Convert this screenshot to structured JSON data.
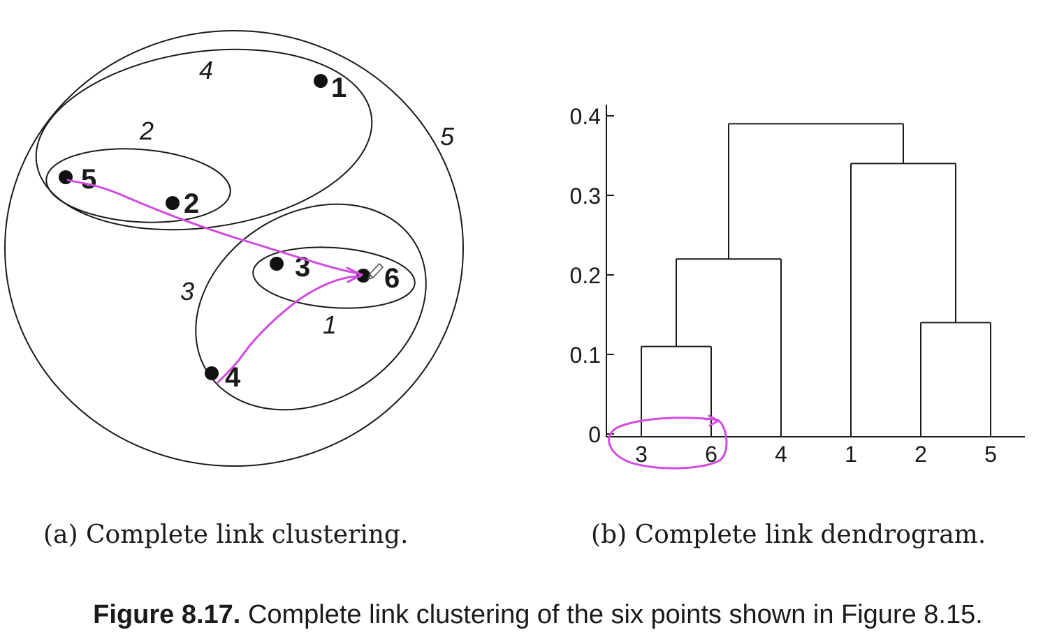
{
  "panel_a": {
    "points": [
      {
        "id": "1",
        "label": "1"
      },
      {
        "id": "2",
        "label": "2"
      },
      {
        "id": "3",
        "label": "3"
      },
      {
        "id": "4",
        "label": "4"
      },
      {
        "id": "5",
        "label": "5"
      },
      {
        "id": "6",
        "label": "6"
      }
    ],
    "cluster_labels": [
      "1",
      "2",
      "3",
      "4",
      "5"
    ],
    "caption": "(a) Complete link clustering."
  },
  "panel_b": {
    "caption": "(b) Complete link dendrogram.",
    "leaves": [
      "3",
      "6",
      "4",
      "1",
      "2",
      "5"
    ],
    "yticks": [
      "0",
      "0.1",
      "0.2",
      "0.3",
      "0.4"
    ]
  },
  "figure_caption": {
    "number": "Figure 8.17.",
    "text": "Complete link clustering of the six points shown in Figure 8.15."
  },
  "annotation_color": "#d14be0",
  "chart_data": {
    "type": "dendrogram",
    "leaves": [
      "3",
      "6",
      "4",
      "1",
      "2",
      "5"
    ],
    "ylim": [
      0,
      0.4
    ],
    "merges": [
      {
        "members": [
          "3",
          "6"
        ],
        "height": 0.11
      },
      {
        "members": [
          "2",
          "5"
        ],
        "height": 0.14
      },
      {
        "members": [
          "3",
          "6",
          "4"
        ],
        "height": 0.22
      },
      {
        "members": [
          "1",
          "2",
          "5"
        ],
        "height": 0.34
      },
      {
        "members": [
          "3",
          "6",
          "4",
          "1",
          "2",
          "5"
        ],
        "height": 0.39
      }
    ]
  }
}
